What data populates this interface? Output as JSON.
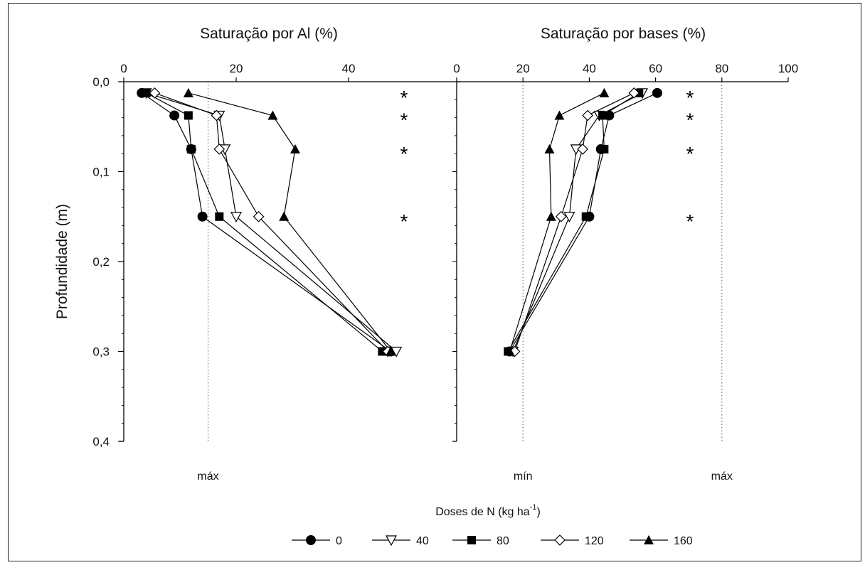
{
  "chart_data": [
    {
      "type": "line",
      "title": "Saturação por Al (%)",
      "ylabel": "Profundidade (m)",
      "xlim": [
        0,
        60
      ],
      "x_ticks": [
        "0",
        "20",
        "40"
      ],
      "ylim": [
        0.0,
        0.4
      ],
      "y_ticks": [
        "0,0",
        "0,1",
        "0,2",
        "0,3",
        "0,4"
      ],
      "y_inverted": true,
      "reference_lines": [
        {
          "x": 15,
          "label": "máx"
        }
      ],
      "depths": [
        0.0125,
        0.0375,
        0.075,
        0.15,
        0.3
      ],
      "series": [
        {
          "name": "0",
          "marker": "circle-filled",
          "values": [
            3.2,
            9.0,
            12.0,
            14.0,
            47.5
          ]
        },
        {
          "name": "40",
          "marker": "triangle-down-open",
          "values": [
            4.0,
            17.0,
            18.0,
            20.0,
            48.5
          ]
        },
        {
          "name": "80",
          "marker": "square-filled",
          "values": [
            4.0,
            11.5,
            12.0,
            17.0,
            46.0
          ]
        },
        {
          "name": "120",
          "marker": "diamond-open",
          "values": [
            5.5,
            16.5,
            17.0,
            24.0,
            47.0
          ]
        },
        {
          "name": "160",
          "marker": "triangle-up-filled",
          "values": [
            11.5,
            26.5,
            30.5,
            28.5,
            47.5
          ]
        }
      ],
      "significance": [
        {
          "depth": 0.0125,
          "label": "*"
        },
        {
          "depth": 0.0375,
          "label": "*"
        },
        {
          "depth": 0.075,
          "label": "*"
        },
        {
          "depth": 0.15,
          "label": "*"
        }
      ]
    },
    {
      "type": "line",
      "title": "Saturação por bases (%)",
      "xlim": [
        0,
        100
      ],
      "x_ticks": [
        "0",
        "20",
        "40",
        "60",
        "80",
        "100"
      ],
      "ylim": [
        0.0,
        0.4
      ],
      "y_inverted": true,
      "reference_lines": [
        {
          "x": 20,
          "label": "mín"
        },
        {
          "x": 80,
          "label": "máx"
        }
      ],
      "depths": [
        0.0125,
        0.0375,
        0.075,
        0.15,
        0.3
      ],
      "series": [
        {
          "name": "0",
          "marker": "circle-filled",
          "values": [
            60.5,
            46.0,
            43.5,
            40.0,
            16.0
          ]
        },
        {
          "name": "40",
          "marker": "triangle-down-open",
          "values": [
            56.0,
            43.0,
            36.0,
            34.0,
            17.0
          ]
        },
        {
          "name": "80",
          "marker": "square-filled",
          "values": [
            55.0,
            44.0,
            44.5,
            39.0,
            15.5
          ]
        },
        {
          "name": "120",
          "marker": "diamond-open",
          "values": [
            53.5,
            39.5,
            38.0,
            31.5,
            17.5
          ]
        },
        {
          "name": "160",
          "marker": "triangle-up-filled",
          "values": [
            44.5,
            31.0,
            28.0,
            28.5,
            16.0
          ]
        }
      ],
      "significance": [
        {
          "depth": 0.0125,
          "label": "*"
        },
        {
          "depth": 0.0375,
          "label": "*"
        },
        {
          "depth": 0.075,
          "label": "*"
        },
        {
          "depth": 0.15,
          "label": "*"
        }
      ]
    }
  ],
  "legend": {
    "title": "Doses de N (kg ha",
    "title_sup": "-1",
    "title_close": ")",
    "placement": "bottom-center",
    "items": [
      {
        "label": "0",
        "marker": "circle-filled"
      },
      {
        "label": "40",
        "marker": "triangle-down-open"
      },
      {
        "label": "80",
        "marker": "square-filled"
      },
      {
        "label": "120",
        "marker": "diamond-open"
      },
      {
        "label": "160",
        "marker": "triangle-up-filled"
      }
    ]
  }
}
